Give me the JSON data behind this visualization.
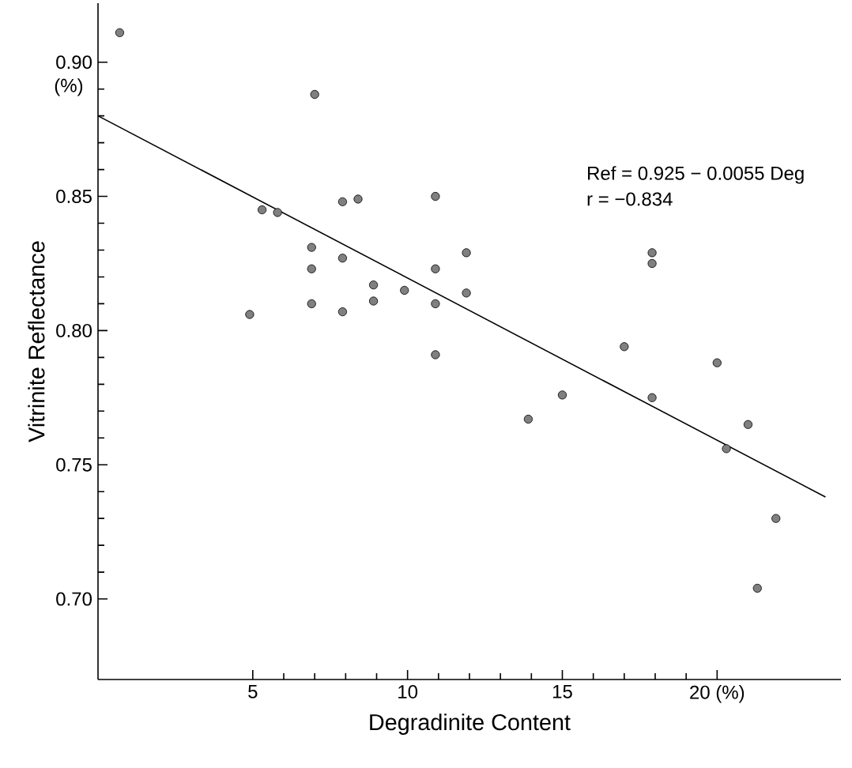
{
  "chart_data": {
    "type": "scatter",
    "xlabel": "Degradinite Content",
    "ylabel": "Vitrinite Reflectance",
    "xlim": [
      0,
      24
    ],
    "ylim": [
      0.67,
      0.922
    ],
    "xticks": [
      5,
      10,
      15,
      {
        "value": 20,
        "label": "20 (%)"
      }
    ],
    "yticks": [
      {
        "value": 0.7,
        "label": "0.70"
      },
      0.75,
      {
        "value": 0.8,
        "label": "0.80"
      },
      0.85,
      {
        "value": 0.9,
        "label": "0.90"
      }
    ],
    "annotations": [
      "(%)",
      "Ref = 0.925 − 0.0055 Deg",
      "r = −0.834"
    ],
    "series": [
      {
        "marker": "circle",
        "color": "#808080",
        "x": [
          0.7,
          7,
          5.3,
          5.8,
          4.9,
          7.9,
          8.4,
          6.9,
          6.9,
          7.9,
          6.9,
          7.9,
          8.9,
          8.9,
          9.9,
          10.9,
          10.9,
          10.9,
          10.9,
          11.9,
          11.9,
          13.9,
          15,
          17,
          17.9,
          17.9,
          17.9,
          20,
          20.3,
          21,
          21.9,
          21.3
        ],
        "values": [
          0.911,
          0.888,
          0.845,
          0.844,
          0.806,
          0.848,
          0.849,
          0.831,
          0.823,
          0.827,
          0.81,
          0.807,
          0.817,
          0.811,
          0.815,
          0.85,
          0.823,
          0.81,
          0.791,
          0.829,
          0.814,
          0.767,
          0.776,
          0.794,
          0.829,
          0.825,
          0.775,
          0.788,
          0.756,
          0.765,
          0.73,
          0.704
        ]
      },
      {
        "type": "line",
        "marker": "none",
        "color": "#000000",
        "x": [
          0,
          23.5
        ],
        "values": [
          0.88,
          0.738
        ]
      }
    ]
  }
}
